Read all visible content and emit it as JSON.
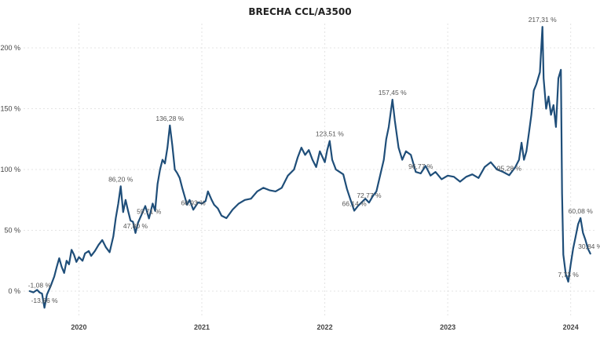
{
  "chart_data": {
    "type": "line",
    "title": "BRECHA CCL/A3500",
    "xlabel": "",
    "ylabel": "",
    "ylim": [
      -20,
      220
    ],
    "xlim": [
      2019.55,
      2024.2
    ],
    "y_ticks": [
      {
        "value": 0,
        "label": "0 %"
      },
      {
        "value": 50,
        "label": "50 %"
      },
      {
        "value": 100,
        "label": "100 %"
      },
      {
        "value": 150,
        "label": "150 %"
      },
      {
        "value": 200,
        "label": "200 %"
      }
    ],
    "x_ticks": [
      {
        "value": 2020.0,
        "label": "2020"
      },
      {
        "value": 2021.0,
        "label": "2021"
      },
      {
        "value": 2022.0,
        "label": "2022"
      },
      {
        "value": 2023.0,
        "label": "2023"
      },
      {
        "value": 2024.0,
        "label": "2024"
      }
    ],
    "grid": true,
    "legend": "none",
    "color": "#1f4e79",
    "series": [
      {
        "values": [
          [
            2019.6,
            0
          ],
          [
            2019.63,
            -1
          ],
          [
            2019.66,
            1
          ],
          [
            2019.68,
            -1.08
          ],
          [
            2019.7,
            -2
          ],
          [
            2019.72,
            -13.66
          ],
          [
            2019.74,
            -3
          ],
          [
            2019.77,
            4
          ],
          [
            2019.8,
            12
          ],
          [
            2019.82,
            20
          ],
          [
            2019.84,
            27
          ],
          [
            2019.86,
            20
          ],
          [
            2019.88,
            15
          ],
          [
            2019.9,
            25
          ],
          [
            2019.92,
            22
          ],
          [
            2019.94,
            34
          ],
          [
            2019.96,
            30
          ],
          [
            2019.98,
            24
          ],
          [
            2020.0,
            28
          ],
          [
            2020.03,
            25
          ],
          [
            2020.05,
            31
          ],
          [
            2020.08,
            33
          ],
          [
            2020.1,
            29
          ],
          [
            2020.13,
            33
          ],
          [
            2020.16,
            38
          ],
          [
            2020.19,
            42
          ],
          [
            2020.22,
            36
          ],
          [
            2020.25,
            32
          ],
          [
            2020.28,
            45
          ],
          [
            2020.3,
            60
          ],
          [
            2020.32,
            72
          ],
          [
            2020.34,
            86.2
          ],
          [
            2020.36,
            65
          ],
          [
            2020.38,
            75
          ],
          [
            2020.4,
            66
          ],
          [
            2020.42,
            58
          ],
          [
            2020.44,
            57
          ],
          [
            2020.46,
            47.8
          ],
          [
            2020.48,
            56
          ],
          [
            2020.51,
            63
          ],
          [
            2020.54,
            70
          ],
          [
            2020.57,
            59.71
          ],
          [
            2020.6,
            72
          ],
          [
            2020.62,
            66
          ],
          [
            2020.64,
            88
          ],
          [
            2020.66,
            100
          ],
          [
            2020.68,
            108
          ],
          [
            2020.7,
            105
          ],
          [
            2020.72,
            118
          ],
          [
            2020.74,
            136.28
          ],
          [
            2020.76,
            120
          ],
          [
            2020.78,
            100
          ],
          [
            2020.8,
            97
          ],
          [
            2020.82,
            93
          ],
          [
            2020.84,
            85
          ],
          [
            2020.86,
            78
          ],
          [
            2020.88,
            71
          ],
          [
            2020.9,
            75
          ],
          [
            2020.93,
            66.93
          ],
          [
            2020.97,
            73
          ],
          [
            2021.0,
            72
          ],
          [
            2021.03,
            74
          ],
          [
            2021.05,
            82
          ],
          [
            2021.08,
            75
          ],
          [
            2021.1,
            71
          ],
          [
            2021.13,
            68
          ],
          [
            2021.16,
            62
          ],
          [
            2021.2,
            60
          ],
          [
            2021.25,
            67
          ],
          [
            2021.3,
            72
          ],
          [
            2021.35,
            75
          ],
          [
            2021.4,
            76
          ],
          [
            2021.45,
            82
          ],
          [
            2021.5,
            85
          ],
          [
            2021.55,
            83
          ],
          [
            2021.6,
            82
          ],
          [
            2021.65,
            85
          ],
          [
            2021.7,
            95
          ],
          [
            2021.75,
            100
          ],
          [
            2021.78,
            110
          ],
          [
            2021.81,
            118
          ],
          [
            2021.84,
            112
          ],
          [
            2021.87,
            116
          ],
          [
            2021.9,
            108
          ],
          [
            2021.93,
            102
          ],
          [
            2021.96,
            115
          ],
          [
            2022.0,
            106
          ],
          [
            2022.02,
            116
          ],
          [
            2022.04,
            123.51
          ],
          [
            2022.06,
            108
          ],
          [
            2022.09,
            100
          ],
          [
            2022.12,
            98
          ],
          [
            2022.15,
            96
          ],
          [
            2022.18,
            84
          ],
          [
            2022.21,
            75
          ],
          [
            2022.24,
            66.14
          ],
          [
            2022.27,
            70
          ],
          [
            2022.3,
            73
          ],
          [
            2022.33,
            76
          ],
          [
            2022.36,
            72.77
          ],
          [
            2022.39,
            78
          ],
          [
            2022.42,
            82
          ],
          [
            2022.45,
            95
          ],
          [
            2022.48,
            108
          ],
          [
            2022.5,
            125
          ],
          [
            2022.52,
            135
          ],
          [
            2022.55,
            157.45
          ],
          [
            2022.57,
            140
          ],
          [
            2022.6,
            118
          ],
          [
            2022.63,
            108
          ],
          [
            2022.66,
            115
          ],
          [
            2022.7,
            112
          ],
          [
            2022.74,
            98
          ],
          [
            2022.78,
            96.77
          ],
          [
            2022.82,
            103
          ],
          [
            2022.86,
            95
          ],
          [
            2022.9,
            98
          ],
          [
            2022.95,
            92
          ],
          [
            2023.0,
            95
          ],
          [
            2023.05,
            94
          ],
          [
            2023.1,
            90
          ],
          [
            2023.15,
            94
          ],
          [
            2023.2,
            96
          ],
          [
            2023.25,
            93
          ],
          [
            2023.3,
            102
          ],
          [
            2023.35,
            106
          ],
          [
            2023.4,
            100
          ],
          [
            2023.45,
            98
          ],
          [
            2023.5,
            95.28
          ],
          [
            2023.55,
            102
          ],
          [
            2023.58,
            108
          ],
          [
            2023.6,
            122
          ],
          [
            2023.62,
            108
          ],
          [
            2023.64,
            115
          ],
          [
            2023.66,
            130
          ],
          [
            2023.68,
            145
          ],
          [
            2023.7,
            165
          ],
          [
            2023.72,
            170
          ],
          [
            2023.75,
            180
          ],
          [
            2023.77,
            217.31
          ],
          [
            2023.78,
            175
          ],
          [
            2023.8,
            150
          ],
          [
            2023.82,
            160
          ],
          [
            2023.84,
            145
          ],
          [
            2023.86,
            153
          ],
          [
            2023.88,
            135
          ],
          [
            2023.9,
            175
          ],
          [
            2023.92,
            182
          ],
          [
            2023.93,
            80
          ],
          [
            2023.94,
            30
          ],
          [
            2023.96,
            14
          ],
          [
            2023.98,
            7.73
          ],
          [
            2024.0,
            22
          ],
          [
            2024.02,
            35
          ],
          [
            2024.04,
            45
          ],
          [
            2024.06,
            55
          ],
          [
            2024.08,
            60.08
          ],
          [
            2024.1,
            48
          ],
          [
            2024.12,
            42
          ],
          [
            2024.14,
            35
          ],
          [
            2024.16,
            30.84
          ]
        ]
      }
    ],
    "annotations": [
      {
        "x": 2019.68,
        "y": -1.08,
        "label": "-1,08 %"
      },
      {
        "x": 2019.72,
        "y": -13.66,
        "label": "-13,66 %"
      },
      {
        "x": 2020.34,
        "y": 86.2,
        "label": "86,20 %"
      },
      {
        "x": 2020.46,
        "y": 47.8,
        "label": "47,80 %"
      },
      {
        "x": 2020.57,
        "y": 59.71,
        "label": "59,71 %"
      },
      {
        "x": 2020.74,
        "y": 136.28,
        "label": "136,28 %"
      },
      {
        "x": 2020.93,
        "y": 66.93,
        "label": "66,93 %"
      },
      {
        "x": 2022.04,
        "y": 123.51,
        "label": "123,51 %"
      },
      {
        "x": 2022.24,
        "y": 66.14,
        "label": "66,14 %"
      },
      {
        "x": 2022.36,
        "y": 72.77,
        "label": "72,77 %"
      },
      {
        "x": 2022.55,
        "y": 157.45,
        "label": "157,45 %"
      },
      {
        "x": 2022.78,
        "y": 96.77,
        "label": "96,77 %"
      },
      {
        "x": 2023.5,
        "y": 95.28,
        "label": "95,28 %"
      },
      {
        "x": 2023.77,
        "y": 217.31,
        "label": "217,31 %"
      },
      {
        "x": 2023.98,
        "y": 7.73,
        "label": "7,73 %"
      },
      {
        "x": 2024.08,
        "y": 60.08,
        "label": "60,08 %"
      },
      {
        "x": 2024.16,
        "y": 30.84,
        "label": "30,84 %"
      }
    ]
  }
}
